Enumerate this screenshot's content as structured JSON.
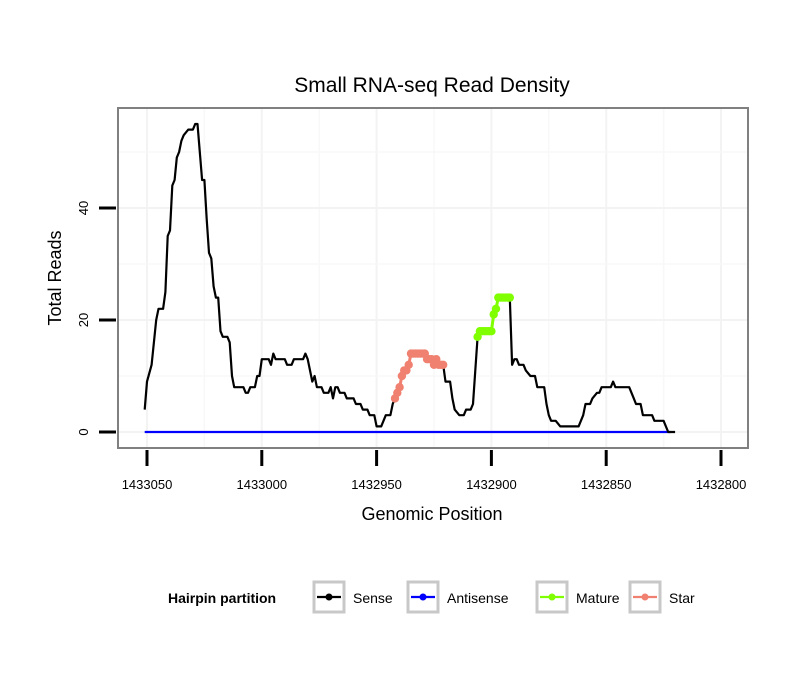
{
  "chart_data": {
    "type": "line",
    "title": "Small RNA-seq Read Density",
    "xlabel": "Genomic Position",
    "ylabel": "Total Reads",
    "x_reversed": true,
    "xlim": [
      1433064,
      1432789
    ],
    "ylim": [
      -3,
      57
    ],
    "x_ticks": [
      1433050,
      1433000,
      1432950,
      1432900,
      1432850,
      1432800
    ],
    "x_tick_labels": [
      "1433050",
      "1433000",
      "1432950",
      "1432900",
      "1432850",
      "1432800"
    ],
    "y_ticks": [
      0,
      20,
      40
    ],
    "y_tick_labels": [
      "0",
      "20",
      "40"
    ],
    "grid": true,
    "legend": {
      "title": "Hairpin partition",
      "placement": "bottom",
      "entries": [
        {
          "name": "Sense",
          "color": "#000000"
        },
        {
          "name": "Antisense",
          "color": "#0000ff"
        },
        {
          "name": "Mature",
          "color": "#7fff00"
        },
        {
          "name": "Star",
          "color": "#f08070"
        }
      ]
    },
    "series": [
      {
        "name": "Sense",
        "color": "#000000",
        "points": [
          [
            1433051,
            4
          ],
          [
            1433050,
            9
          ],
          [
            1433048,
            12
          ],
          [
            1433046,
            20
          ],
          [
            1433045,
            22
          ],
          [
            1433043,
            22
          ],
          [
            1433042,
            25
          ],
          [
            1433041,
            35
          ],
          [
            1433040,
            36
          ],
          [
            1433039,
            44
          ],
          [
            1433038,
            45
          ],
          [
            1433037,
            49
          ],
          [
            1433036,
            50
          ],
          [
            1433035,
            52
          ],
          [
            1433034,
            53
          ],
          [
            1433032,
            54
          ],
          [
            1433030,
            54
          ],
          [
            1433029,
            55
          ],
          [
            1433028,
            55
          ],
          [
            1433027,
            50
          ],
          [
            1433026,
            45
          ],
          [
            1433025,
            45
          ],
          [
            1433024,
            38
          ],
          [
            1433023,
            32
          ],
          [
            1433022,
            31
          ],
          [
            1433021,
            26
          ],
          [
            1433020,
            24
          ],
          [
            1433019,
            24
          ],
          [
            1433018,
            18
          ],
          [
            1433017,
            17
          ],
          [
            1433015,
            17
          ],
          [
            1433014,
            16
          ],
          [
            1433013,
            10
          ],
          [
            1433012,
            8
          ],
          [
            1433008,
            8
          ],
          [
            1433007,
            7
          ],
          [
            1433006,
            7
          ],
          [
            1433005,
            8
          ],
          [
            1433003,
            8
          ],
          [
            1433002,
            10
          ],
          [
            1433001,
            10
          ],
          [
            1433000,
            13
          ],
          [
            1432997,
            13
          ],
          [
            1432996,
            12
          ],
          [
            1432995,
            14
          ],
          [
            1432994,
            13
          ],
          [
            1432990,
            13
          ],
          [
            1432989,
            12
          ],
          [
            1432987,
            12
          ],
          [
            1432986,
            13
          ],
          [
            1432982,
            13
          ],
          [
            1432981,
            14
          ],
          [
            1432980,
            13
          ],
          [
            1432979,
            11
          ],
          [
            1432978,
            9
          ],
          [
            1432977,
            10
          ],
          [
            1432976,
            8
          ],
          [
            1432974,
            8
          ],
          [
            1432973,
            7
          ],
          [
            1432971,
            7
          ],
          [
            1432970,
            8
          ],
          [
            1432969,
            6
          ],
          [
            1432968,
            8
          ],
          [
            1432967,
            8
          ],
          [
            1432966,
            7
          ],
          [
            1432964,
            7
          ],
          [
            1432963,
            6
          ],
          [
            1432960,
            6
          ],
          [
            1432959,
            5
          ],
          [
            1432957,
            5
          ],
          [
            1432956,
            4
          ],
          [
            1432954,
            4
          ],
          [
            1432953,
            3
          ],
          [
            1432951,
            3
          ],
          [
            1432950,
            1
          ],
          [
            1432948,
            1
          ],
          [
            1432947,
            2
          ],
          [
            1432946,
            3
          ],
          [
            1432944,
            3
          ],
          [
            1432943,
            5
          ],
          [
            1432942,
            6
          ],
          [
            1432940,
            8
          ],
          [
            1432939,
            10
          ],
          [
            1432938,
            11
          ],
          [
            1432936,
            12
          ],
          [
            1432935,
            14
          ],
          [
            1432933,
            14
          ],
          [
            1432930,
            14
          ],
          [
            1432928,
            13
          ],
          [
            1432926,
            13
          ],
          [
            1432924,
            13
          ],
          [
            1432922,
            12
          ],
          [
            1432921,
            12
          ],
          [
            1432920,
            9
          ],
          [
            1432918,
            9
          ],
          [
            1432917,
            6
          ],
          [
            1432916,
            4
          ],
          [
            1432914,
            3
          ],
          [
            1432912,
            3
          ],
          [
            1432911,
            4
          ],
          [
            1432909,
            4
          ],
          [
            1432908,
            5
          ],
          [
            1432906,
            17
          ],
          [
            1432905,
            18
          ],
          [
            1432901,
            18
          ],
          [
            1432900,
            18
          ],
          [
            1432899,
            21
          ],
          [
            1432898,
            22
          ],
          [
            1432897,
            24
          ],
          [
            1432892,
            24
          ],
          [
            1432891,
            12
          ],
          [
            1432890,
            13
          ],
          [
            1432889,
            13
          ],
          [
            1432888,
            12
          ],
          [
            1432886,
            12
          ],
          [
            1432885,
            11
          ],
          [
            1432883,
            10
          ],
          [
            1432881,
            10
          ],
          [
            1432880,
            8
          ],
          [
            1432877,
            8
          ],
          [
            1432876,
            5
          ],
          [
            1432875,
            3
          ],
          [
            1432874,
            2
          ],
          [
            1432872,
            2
          ],
          [
            1432870,
            1
          ],
          [
            1432865,
            1
          ],
          [
            1432862,
            1
          ],
          [
            1432861,
            2
          ],
          [
            1432860,
            3
          ],
          [
            1432859,
            5
          ],
          [
            1432857,
            5
          ],
          [
            1432856,
            6
          ],
          [
            1432854,
            7
          ],
          [
            1432853,
            7
          ],
          [
            1432852,
            8
          ],
          [
            1432848,
            8
          ],
          [
            1432847,
            9
          ],
          [
            1432846,
            8
          ],
          [
            1432840,
            8
          ],
          [
            1432838,
            6
          ],
          [
            1432837,
            5
          ],
          [
            1432835,
            5
          ],
          [
            1432834,
            3
          ],
          [
            1432830,
            3
          ],
          [
            1432829,
            2
          ],
          [
            1432825,
            2
          ],
          [
            1432823,
            0
          ],
          [
            1432820,
            0
          ]
        ]
      },
      {
        "name": "Antisense",
        "color": "#0000ff",
        "points": [
          [
            1433051,
            0
          ],
          [
            1432822,
            0
          ]
        ]
      },
      {
        "name": "Star",
        "color": "#f08070",
        "points": [
          [
            1432942,
            6
          ],
          [
            1432941,
            7
          ],
          [
            1432940,
            8
          ],
          [
            1432939,
            10
          ],
          [
            1432938,
            11
          ],
          [
            1432937,
            11
          ],
          [
            1432936,
            12
          ],
          [
            1432935,
            14
          ],
          [
            1432934,
            14
          ],
          [
            1432933,
            14
          ],
          [
            1432932,
            14
          ],
          [
            1432931,
            14
          ],
          [
            1432930,
            14
          ],
          [
            1432929,
            14
          ],
          [
            1432928,
            13
          ],
          [
            1432927,
            13
          ],
          [
            1432926,
            13
          ],
          [
            1432925,
            12
          ],
          [
            1432924,
            13
          ],
          [
            1432923,
            12
          ],
          [
            1432922,
            12
          ],
          [
            1432921,
            12
          ]
        ]
      },
      {
        "name": "Mature",
        "color": "#7fff00",
        "points": [
          [
            1432906,
            17
          ],
          [
            1432905,
            18
          ],
          [
            1432904,
            18
          ],
          [
            1432903,
            18
          ],
          [
            1432902,
            18
          ],
          [
            1432901,
            18
          ],
          [
            1432900,
            18
          ],
          [
            1432899,
            21
          ],
          [
            1432898,
            22
          ],
          [
            1432897,
            24
          ],
          [
            1432896,
            24
          ],
          [
            1432895,
            24
          ],
          [
            1432894,
            24
          ],
          [
            1432893,
            24
          ],
          [
            1432892,
            24
          ]
        ]
      }
    ]
  }
}
